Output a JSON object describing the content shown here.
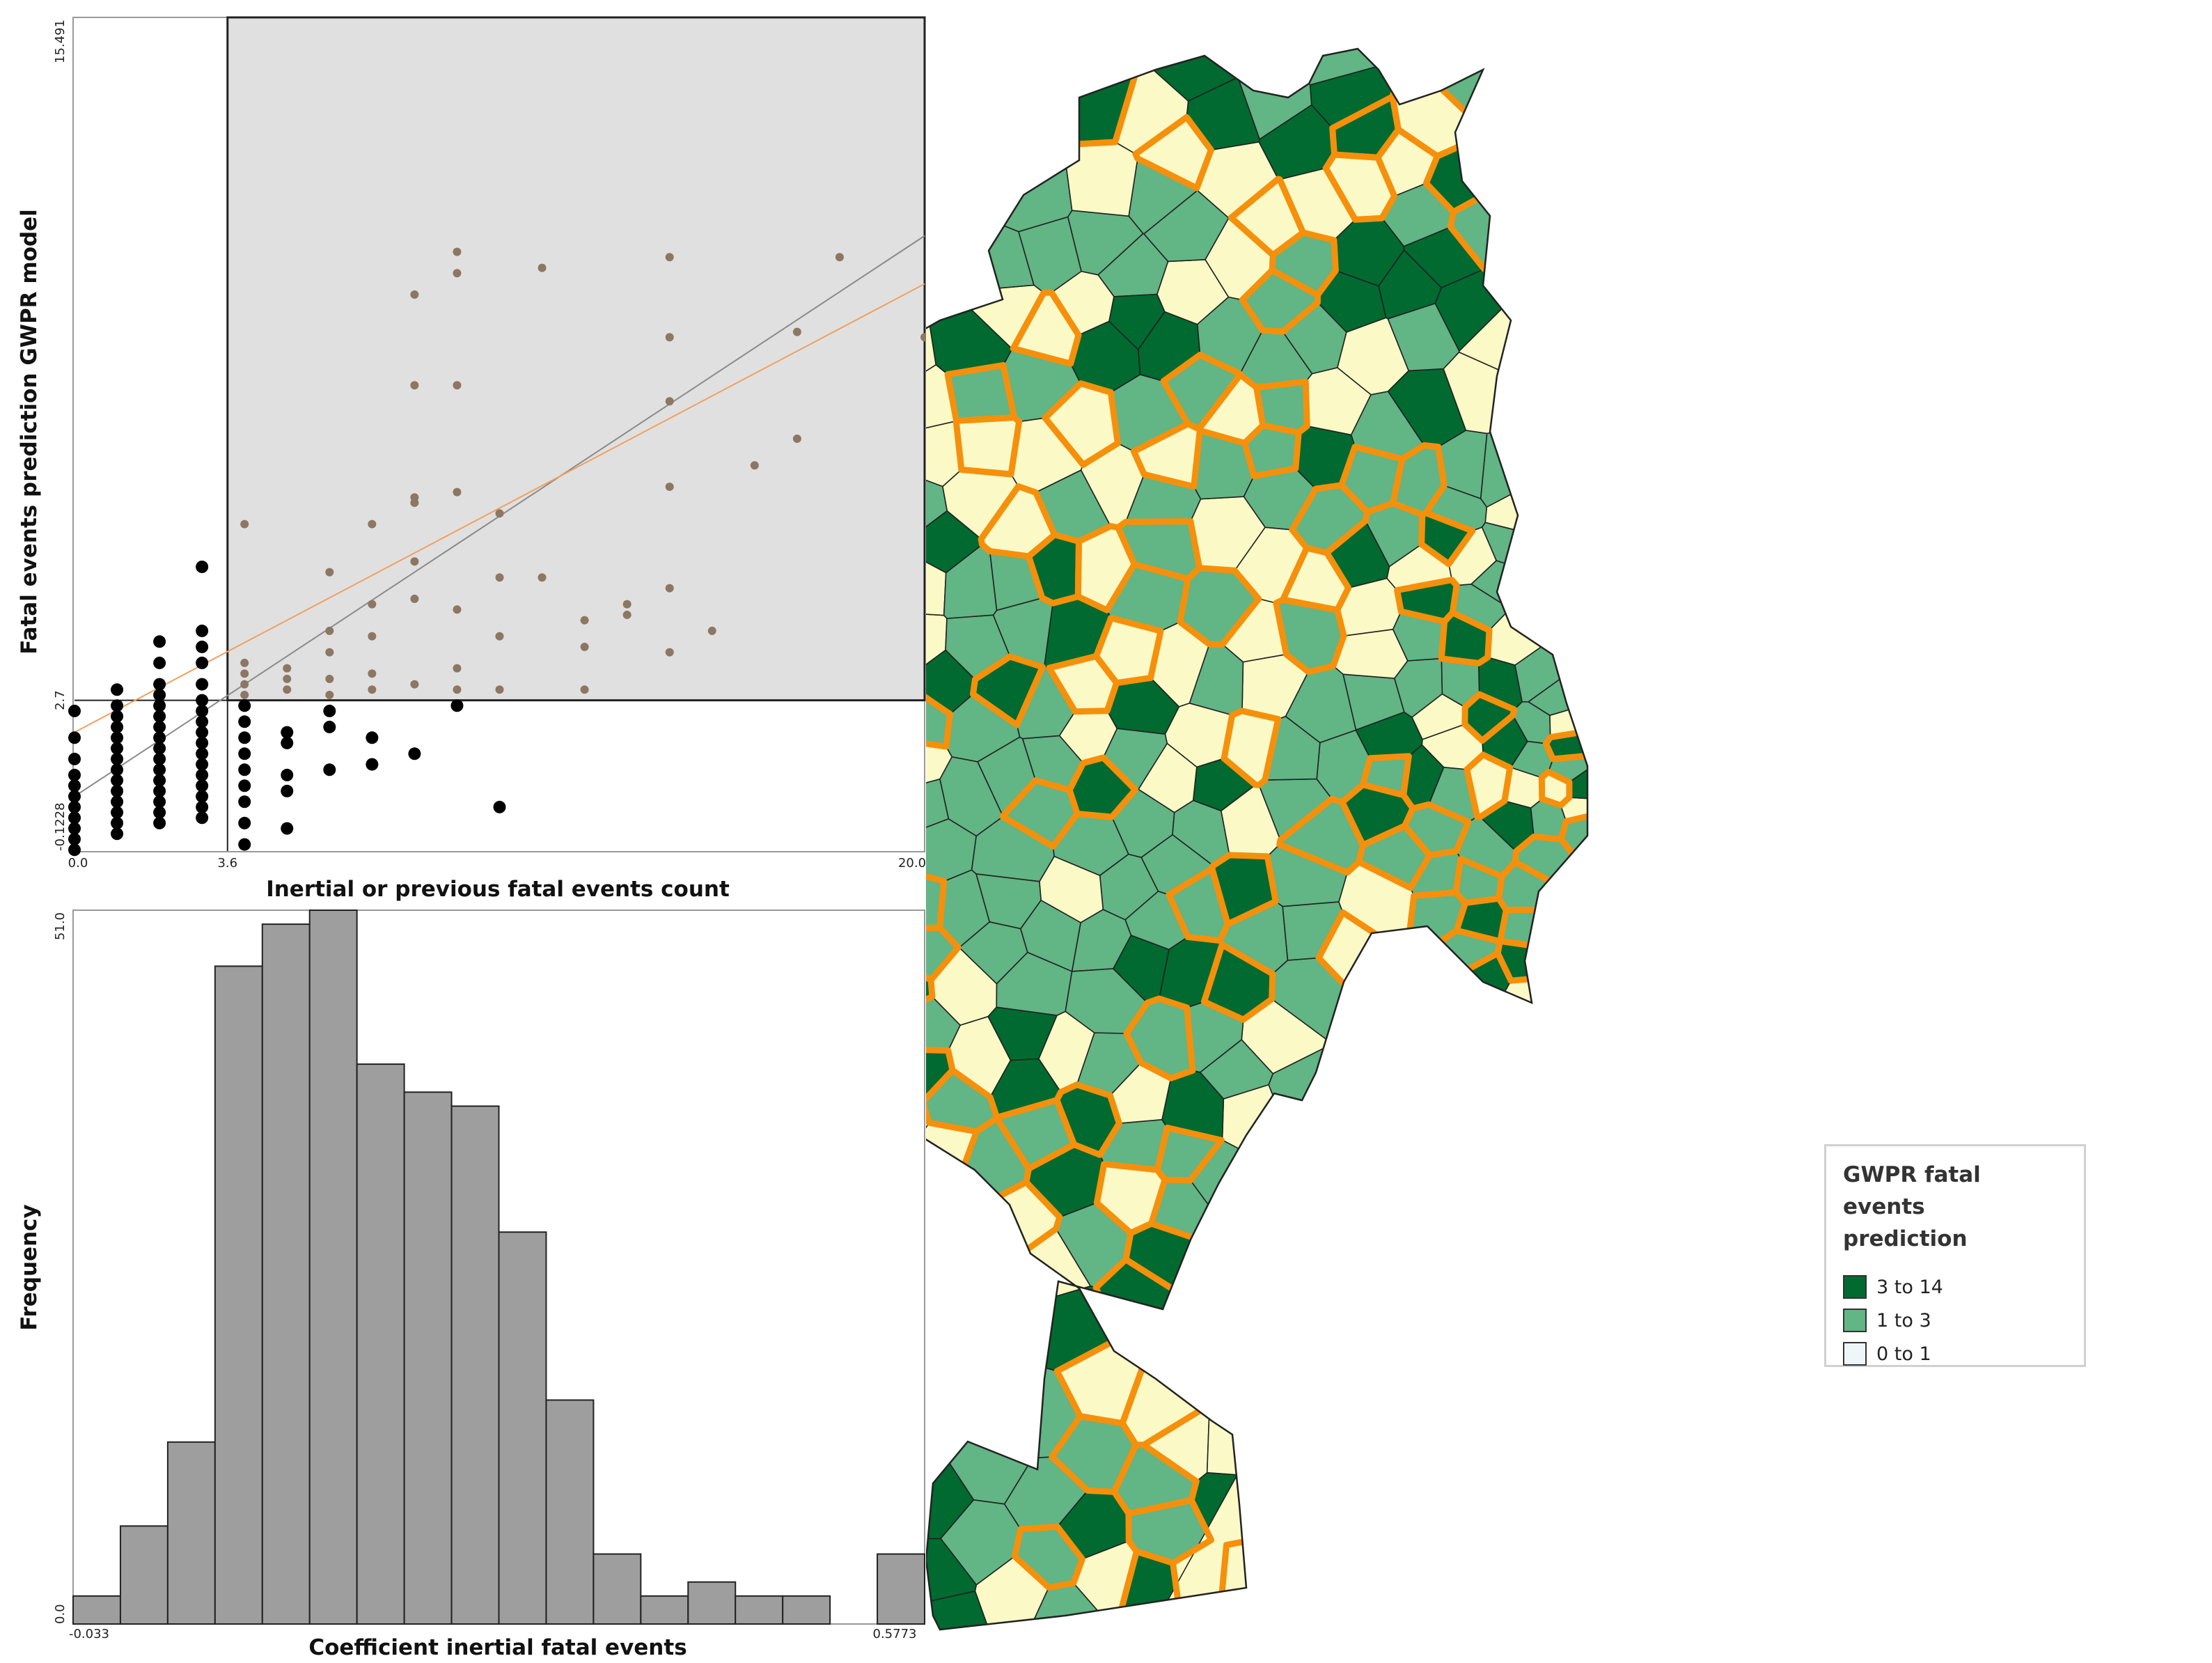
{
  "scatter": {
    "ylabel": "Fatal events prediction GWPR model",
    "xlabel": "Inertial or previous fatal events count",
    "y_ticks": [
      "15.491",
      "2.7",
      "-0.1228"
    ],
    "x_ticks": [
      "0.0",
      "3.6",
      "20.0"
    ],
    "chart_data": {
      "type": "scatter",
      "xlabel": "Inertial or previous fatal events count",
      "ylabel": "Fatal events prediction GWPR model",
      "xlim": [
        0.0,
        20.0
      ],
      "ylim": [
        -0.1228,
        15.491
      ],
      "threshold_x": 3.6,
      "threshold_y": 2.7,
      "highlight_region": "x >= 3.6 and y >= 2.7 (shaded grey)",
      "fit_lines": [
        {
          "color": "#8a8a8a",
          "x": [
            0,
            20
          ],
          "y": [
            0.9,
            11.4
          ]
        },
        {
          "color": "#f0a060",
          "x": [
            0,
            20
          ],
          "y": [
            2.1,
            10.5
          ]
        }
      ],
      "points": [
        {
          "x": 0,
          "y": -0.1
        },
        {
          "x": 0,
          "y": 0.1
        },
        {
          "x": 0,
          "y": 0.3
        },
        {
          "x": 0,
          "y": 0.5
        },
        {
          "x": 0,
          "y": 0.7
        },
        {
          "x": 0,
          "y": 0.9
        },
        {
          "x": 0,
          "y": 1.1
        },
        {
          "x": 0,
          "y": 1.3
        },
        {
          "x": 0,
          "y": 1.6
        },
        {
          "x": 0,
          "y": 2.0
        },
        {
          "x": 0,
          "y": 2.5
        },
        {
          "x": 1,
          "y": 0.2
        },
        {
          "x": 1,
          "y": 0.4
        },
        {
          "x": 1,
          "y": 0.6
        },
        {
          "x": 1,
          "y": 0.8
        },
        {
          "x": 1,
          "y": 1.0
        },
        {
          "x": 1,
          "y": 1.2
        },
        {
          "x": 1,
          "y": 1.4
        },
        {
          "x": 1,
          "y": 1.6
        },
        {
          "x": 1,
          "y": 1.8
        },
        {
          "x": 1,
          "y": 2.0
        },
        {
          "x": 1,
          "y": 2.2
        },
        {
          "x": 1,
          "y": 2.4
        },
        {
          "x": 1,
          "y": 2.6
        },
        {
          "x": 1,
          "y": 2.9
        },
        {
          "x": 2,
          "y": 0.4
        },
        {
          "x": 2,
          "y": 0.6
        },
        {
          "x": 2,
          "y": 0.8
        },
        {
          "x": 2,
          "y": 1.0
        },
        {
          "x": 2,
          "y": 1.2
        },
        {
          "x": 2,
          "y": 1.4
        },
        {
          "x": 2,
          "y": 1.6
        },
        {
          "x": 2,
          "y": 1.8
        },
        {
          "x": 2,
          "y": 2.0
        },
        {
          "x": 2,
          "y": 2.2
        },
        {
          "x": 2,
          "y": 2.4
        },
        {
          "x": 2,
          "y": 2.6
        },
        {
          "x": 2,
          "y": 2.8
        },
        {
          "x": 2,
          "y": 3.0
        },
        {
          "x": 2,
          "y": 3.4
        },
        {
          "x": 2,
          "y": 3.8
        },
        {
          "x": 3,
          "y": 0.5
        },
        {
          "x": 3,
          "y": 0.7
        },
        {
          "x": 3,
          "y": 0.9
        },
        {
          "x": 3,
          "y": 1.1
        },
        {
          "x": 3,
          "y": 1.3
        },
        {
          "x": 3,
          "y": 1.5
        },
        {
          "x": 3,
          "y": 1.7
        },
        {
          "x": 3,
          "y": 1.9
        },
        {
          "x": 3,
          "y": 2.1
        },
        {
          "x": 3,
          "y": 2.3
        },
        {
          "x": 3,
          "y": 2.5
        },
        {
          "x": 3,
          "y": 2.7
        },
        {
          "x": 3,
          "y": 3.0
        },
        {
          "x": 3,
          "y": 3.4
        },
        {
          "x": 3,
          "y": 3.7
        },
        {
          "x": 3,
          "y": 4.0
        },
        {
          "x": 3,
          "y": 5.2
        },
        {
          "x": 4,
          "y": 0.0
        },
        {
          "x": 4,
          "y": 0.4
        },
        {
          "x": 4,
          "y": 0.8
        },
        {
          "x": 4,
          "y": 1.1
        },
        {
          "x": 4,
          "y": 1.4
        },
        {
          "x": 4,
          "y": 1.7
        },
        {
          "x": 4,
          "y": 2.0
        },
        {
          "x": 4,
          "y": 2.3
        },
        {
          "x": 4,
          "y": 2.6
        },
        {
          "x": 4,
          "y": 2.8
        },
        {
          "x": 4,
          "y": 3.0
        },
        {
          "x": 4,
          "y": 3.2
        },
        {
          "x": 4,
          "y": 3.4
        },
        {
          "x": 4,
          "y": 6.0
        },
        {
          "x": 5,
          "y": 0.3
        },
        {
          "x": 5,
          "y": 1.0
        },
        {
          "x": 5,
          "y": 1.3
        },
        {
          "x": 5,
          "y": 1.9
        },
        {
          "x": 5,
          "y": 2.1
        },
        {
          "x": 5,
          "y": 2.9
        },
        {
          "x": 5,
          "y": 3.1
        },
        {
          "x": 5,
          "y": 3.3
        },
        {
          "x": 6,
          "y": 1.4
        },
        {
          "x": 6,
          "y": 2.2
        },
        {
          "x": 6,
          "y": 2.5
        },
        {
          "x": 6,
          "y": 2.8
        },
        {
          "x": 6,
          "y": 3.1
        },
        {
          "x": 6,
          "y": 3.6
        },
        {
          "x": 6,
          "y": 5.1
        },
        {
          "x": 6,
          "y": 4.0
        },
        {
          "x": 7,
          "y": 1.5
        },
        {
          "x": 7,
          "y": 2.0
        },
        {
          "x": 7,
          "y": 2.9
        },
        {
          "x": 7,
          "y": 3.2
        },
        {
          "x": 7,
          "y": 3.9
        },
        {
          "x": 7,
          "y": 4.5
        },
        {
          "x": 7,
          "y": 6.0
        },
        {
          "x": 8,
          "y": 1.7
        },
        {
          "x": 8,
          "y": 3.0
        },
        {
          "x": 8,
          "y": 4.6
        },
        {
          "x": 8,
          "y": 5.3
        },
        {
          "x": 8,
          "y": 6.4
        },
        {
          "x": 8,
          "y": 6.5
        },
        {
          "x": 8,
          "y": 8.6
        },
        {
          "x": 8,
          "y": 10.3
        },
        {
          "x": 9,
          "y": 2.6
        },
        {
          "x": 9,
          "y": 2.9
        },
        {
          "x": 9,
          "y": 3.3
        },
        {
          "x": 9,
          "y": 4.4
        },
        {
          "x": 9,
          "y": 6.6
        },
        {
          "x": 9,
          "y": 8.6
        },
        {
          "x": 9,
          "y": 10.7
        },
        {
          "x": 9,
          "y": 11.1
        },
        {
          "x": 10,
          "y": 0.7
        },
        {
          "x": 10,
          "y": 2.9
        },
        {
          "x": 10,
          "y": 3.9
        },
        {
          "x": 10,
          "y": 5.0
        },
        {
          "x": 10,
          "y": 6.2
        },
        {
          "x": 11,
          "y": 5.0
        },
        {
          "x": 11,
          "y": 10.8
        },
        {
          "x": 12,
          "y": 2.9
        },
        {
          "x": 12,
          "y": 3.7
        },
        {
          "x": 12,
          "y": 4.2
        },
        {
          "x": 13,
          "y": 4.3
        },
        {
          "x": 13,
          "y": 4.5
        },
        {
          "x": 14,
          "y": 3.6
        },
        {
          "x": 14,
          "y": 4.8
        },
        {
          "x": 14,
          "y": 6.7
        },
        {
          "x": 14,
          "y": 8.3
        },
        {
          "x": 14,
          "y": 9.5
        },
        {
          "x": 14,
          "y": 11.0
        },
        {
          "x": 15,
          "y": 4.0
        },
        {
          "x": 16,
          "y": 7.1
        },
        {
          "x": 17,
          "y": 7.6
        },
        {
          "x": 17,
          "y": 9.6
        },
        {
          "x": 18,
          "y": 11.0
        },
        {
          "x": 20,
          "y": 9.5
        }
      ]
    }
  },
  "histogram": {
    "ylabel": "Frequency",
    "xlabel": "Coefficient inertial fatal events",
    "y_ticks": [
      "51.0",
      "0.0"
    ],
    "x_ticks": [
      "-0.033",
      "0.5773"
    ],
    "chart_data": {
      "type": "bar",
      "xlabel": "Coefficient inertial fatal events",
      "ylabel": "Frequency",
      "xlim": [
        -0.033,
        0.5773
      ],
      "ylim": [
        0,
        51
      ],
      "bins": 18,
      "values": [
        2,
        7,
        13,
        47,
        50,
        51,
        40,
        38,
        37,
        28,
        16,
        5,
        2,
        3,
        2,
        2,
        0,
        5
      ]
    }
  },
  "map": {
    "legend": {
      "title_line1": "GWPR fatal events",
      "title_line2": "prediction",
      "items": [
        {
          "label": "3 to 14",
          "color": "#006a30"
        },
        {
          "label": "1 to 3",
          "color": "#62b584"
        },
        {
          "label": "0 to 1",
          "color": "#eef6fa"
        }
      ]
    },
    "colors": {
      "high": "#006a30",
      "mid": "#62b584",
      "low": "#fbf9c6",
      "highlight_outline": "#f5900c",
      "border": "#222222"
    }
  }
}
